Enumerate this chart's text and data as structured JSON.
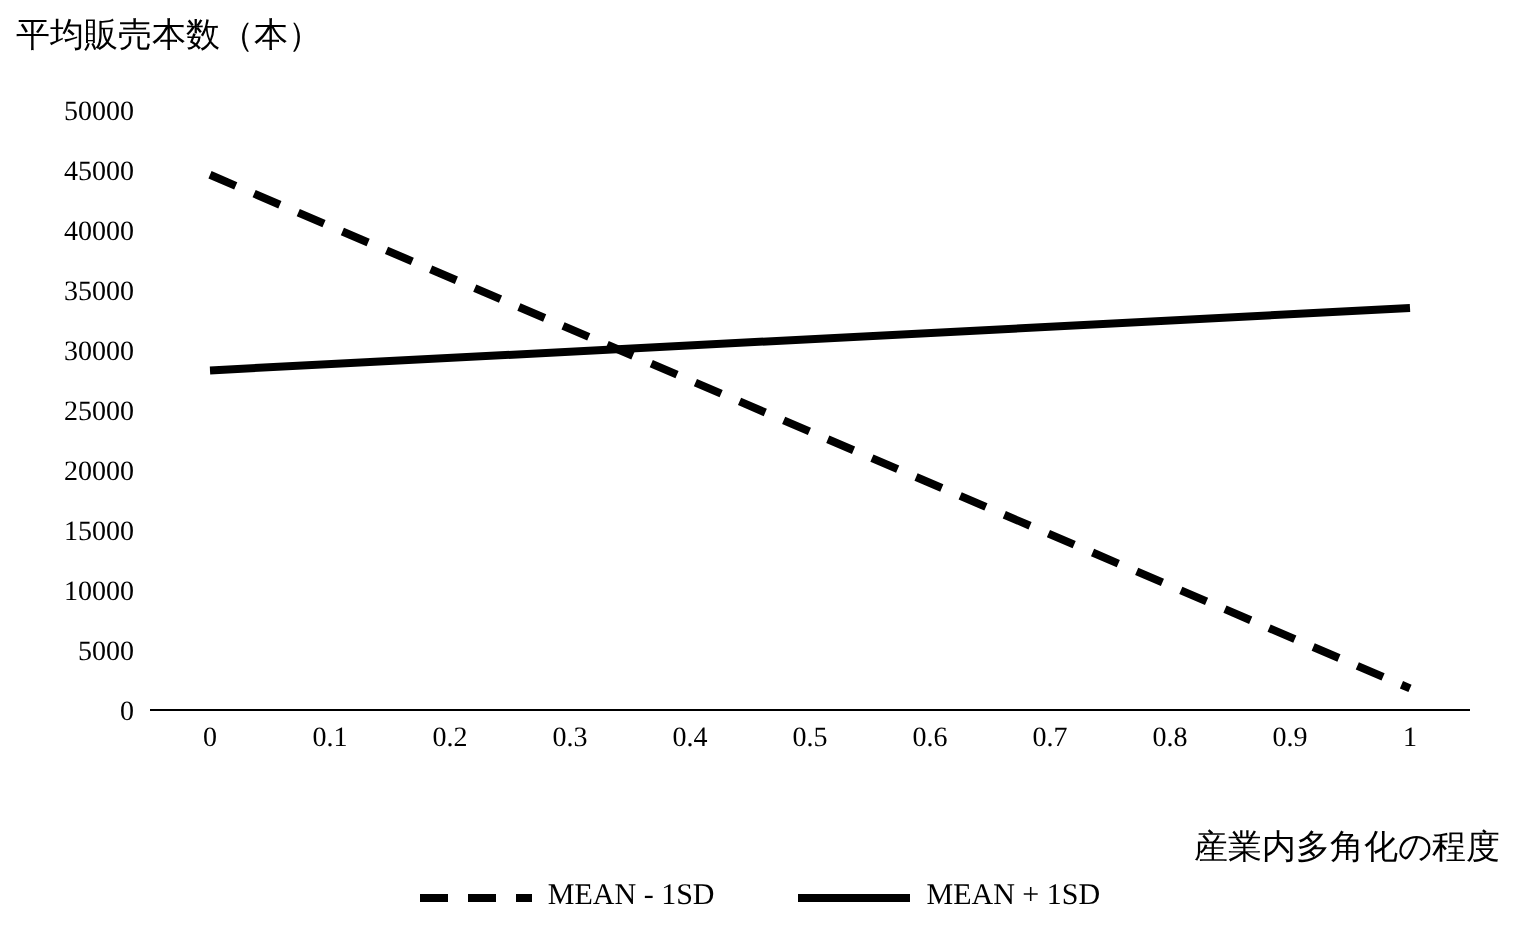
{
  "chart_data": {
    "type": "line",
    "ylabel": "平均販売本数（本）",
    "xlabel": "産業内多角化の程度",
    "xlim": [
      -0.05,
      1.05
    ],
    "xticks": [
      0,
      0.1,
      0.2,
      0.3,
      0.4,
      0.5,
      0.6,
      0.7,
      0.8,
      0.9,
      1
    ],
    "ylim": [
      0,
      50000
    ],
    "yticks": [
      0,
      5000,
      10000,
      15000,
      20000,
      25000,
      30000,
      35000,
      40000,
      45000,
      50000
    ],
    "grid": false,
    "legend": "bottom",
    "marker": "none",
    "x": [
      0,
      1
    ],
    "series": [
      {
        "name": "MEAN - 1SD",
        "color": "#000000",
        "line_style": "dashed",
        "values": [
          44600,
          1800
        ]
      },
      {
        "name": "MEAN + 1SD",
        "color": "#000000",
        "line_style": "solid",
        "values": [
          28300,
          33500
        ]
      }
    ]
  }
}
